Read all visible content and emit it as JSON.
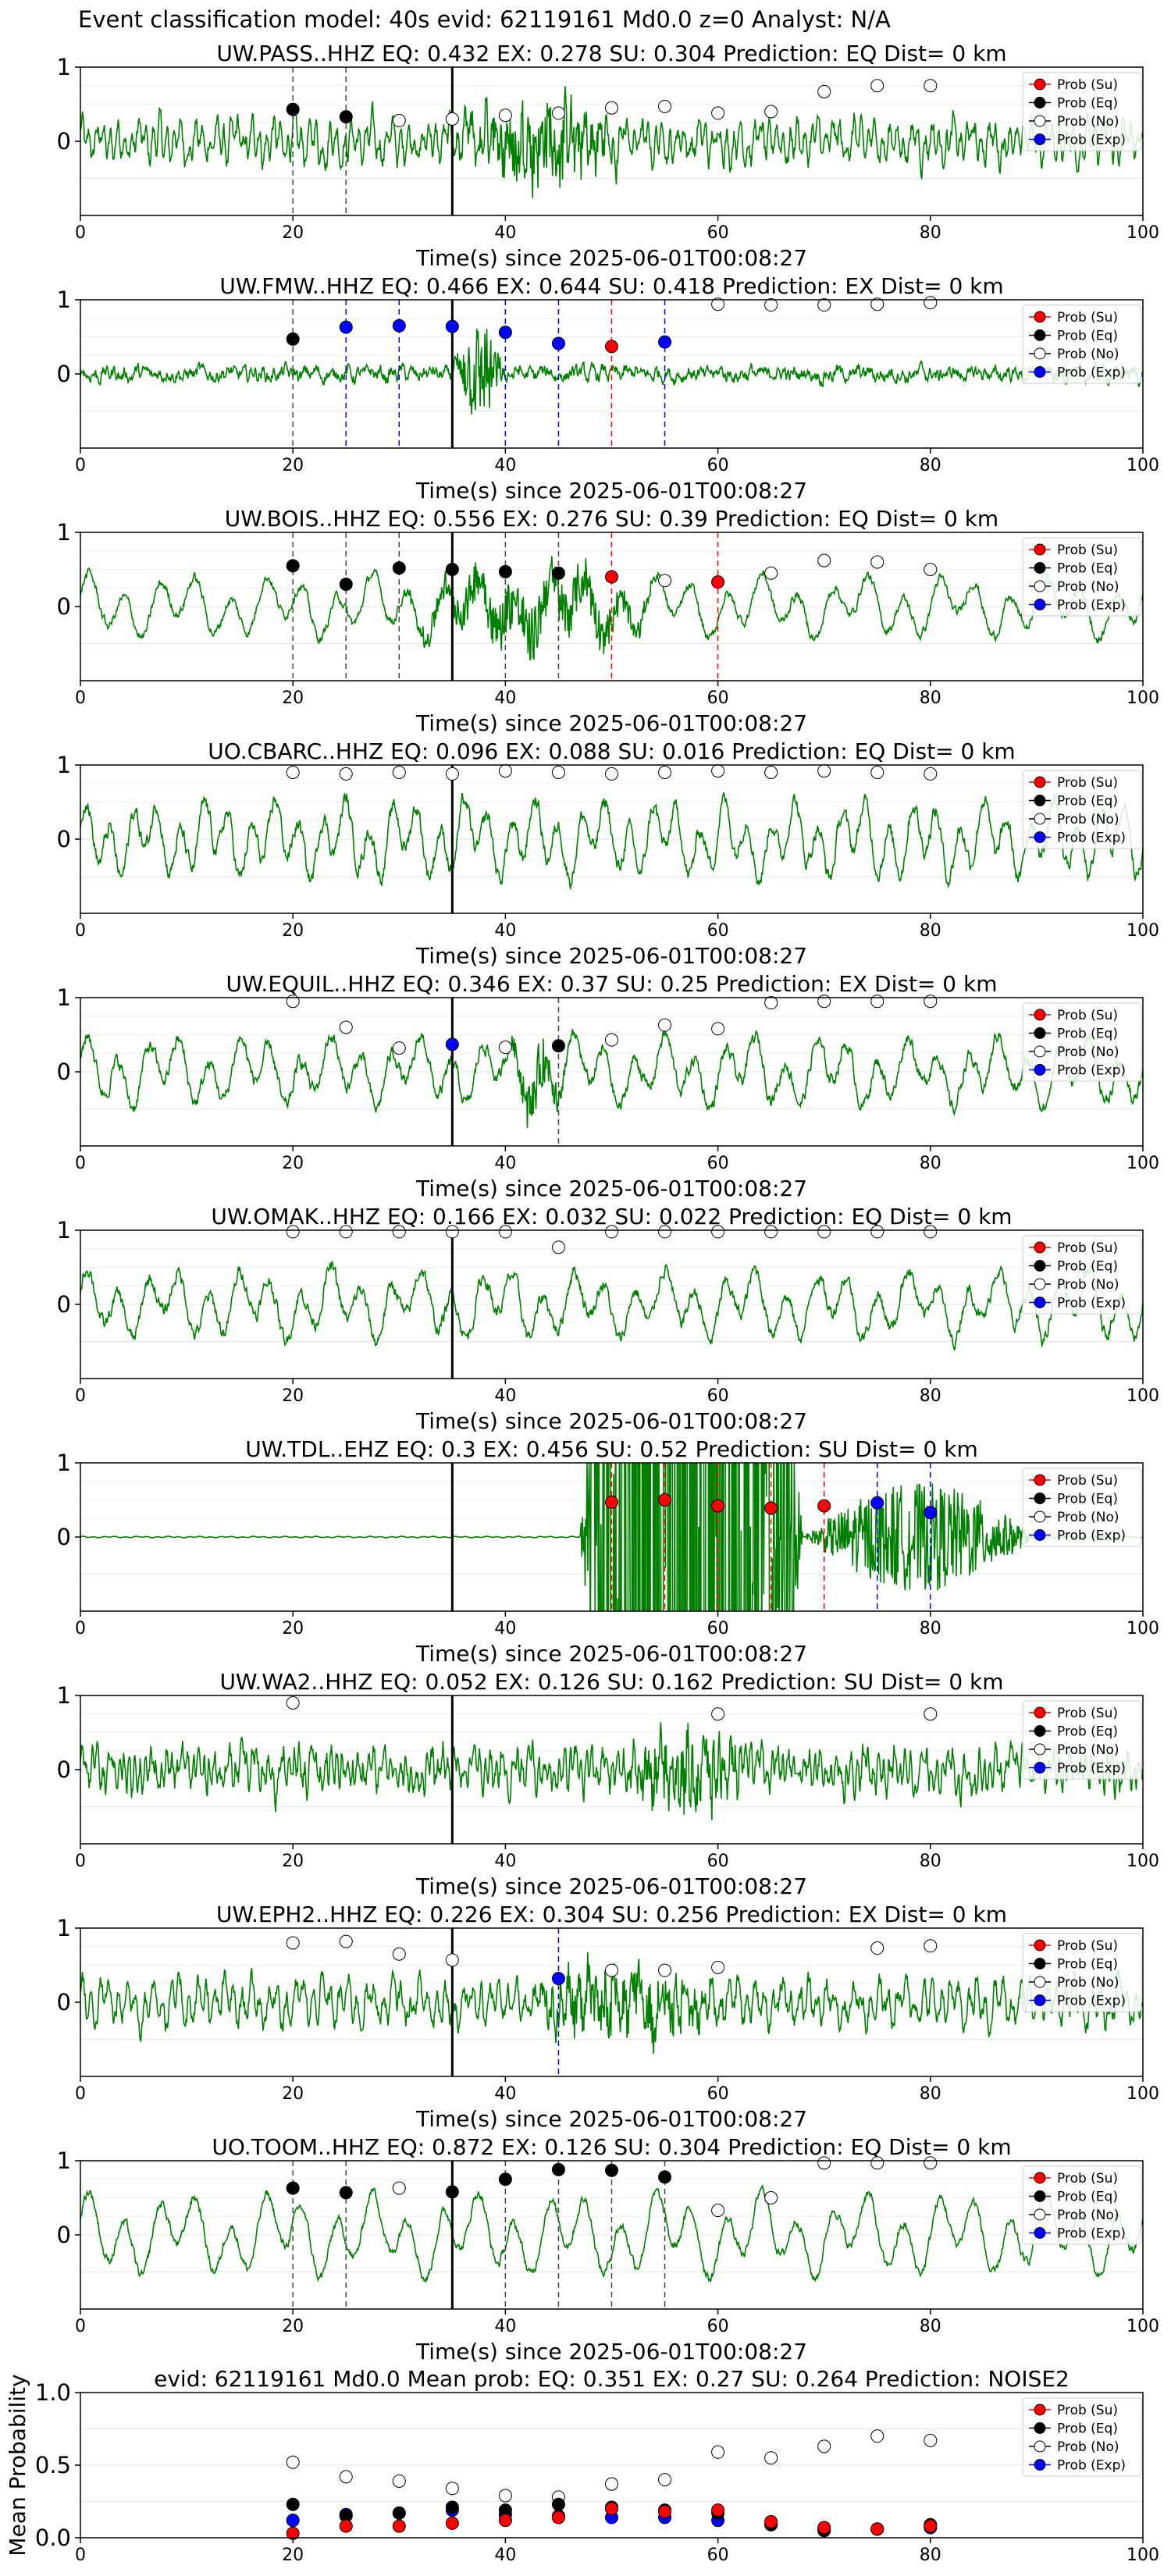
{
  "page_title": "Event classification model: 40s evid: 62119161 Md0.0 z=0 Analyst: N/A",
  "legend_entries": [
    "Prob (Su)",
    "Prob (Eq)",
    "Prob (No)",
    "Prob (Exp)"
  ],
  "colors": {
    "trace": "#008000",
    "su": "#ff0000",
    "eq": "#000000",
    "no": "#ffffff",
    "exp": "#0000ff",
    "pick": "#000000"
  },
  "chart_data": [
    {
      "type": "line",
      "title": "UW.PASS..HHZ   EQ: 0.432  EX: 0.278  SU: 0.304   Prediction: EQ    Dist= 0 km",
      "xlabel": "Time(s) since 2025-06-01T00:08:27",
      "xlim": [
        0,
        100
      ],
      "ylim": [
        -1,
        1
      ],
      "xticks": [
        0,
        20,
        40,
        60,
        80,
        100
      ],
      "yticks": [
        0,
        1
      ],
      "pick_time": 35,
      "waveform": {
        "amp": 0.28,
        "freq": 1.5,
        "noise": 0.5,
        "burst": [
          [
            35,
            52,
            1.9
          ]
        ]
      },
      "series": [
        {
          "name": "Prob (No)",
          "x": [
            30,
            35,
            40,
            45,
            50,
            55,
            60,
            65,
            70,
            75,
            80
          ],
          "y": [
            0.28,
            0.3,
            0.35,
            0.38,
            0.45,
            0.47,
            0.38,
            0.4,
            0.67,
            0.75,
            0.75
          ]
        },
        {
          "name": "Prob (Eq)",
          "x": [
            20,
            25
          ],
          "y": [
            0.43,
            0.33
          ]
        }
      ],
      "vlines": [
        {
          "x": 20,
          "color": "eq"
        },
        {
          "x": 25,
          "color": "eq"
        }
      ],
      "legend": "upper right"
    },
    {
      "type": "line",
      "title": "UW.FMW..HHZ   EQ: 0.466  EX: 0.644  SU: 0.418   Prediction: EX    Dist= 0 km",
      "xlabel": "Time(s) since 2025-06-01T00:08:27",
      "xlim": [
        0,
        100
      ],
      "ylim": [
        -1,
        1
      ],
      "xticks": [
        0,
        20,
        40,
        60,
        80,
        100
      ],
      "yticks": [
        0,
        1
      ],
      "pick_time": 35,
      "waveform": {
        "amp": 0.05,
        "freq": 1.0,
        "noise": 0.3,
        "burst": [
          [
            35,
            40,
            2.6
          ]
        ]
      },
      "series": [
        {
          "name": "Prob (Eq)",
          "x": [
            20
          ],
          "y": [
            0.47
          ]
        },
        {
          "name": "Prob (Exp)",
          "x": [
            25,
            30,
            35,
            40,
            45,
            55
          ],
          "y": [
            0.63,
            0.65,
            0.64,
            0.56,
            0.41,
            0.43
          ]
        },
        {
          "name": "Prob (Su)",
          "x": [
            50
          ],
          "y": [
            0.37
          ]
        },
        {
          "name": "Prob (No)",
          "x": [
            60,
            65,
            70,
            75,
            80
          ],
          "y": [
            0.94,
            0.93,
            0.93,
            0.94,
            0.96
          ]
        }
      ],
      "vlines": [
        {
          "x": 20,
          "color": "eq"
        },
        {
          "x": 25,
          "color": "exp"
        },
        {
          "x": 30,
          "color": "exp"
        },
        {
          "x": 35,
          "color": "exp"
        },
        {
          "x": 40,
          "color": "exp"
        },
        {
          "x": 45,
          "color": "exp"
        },
        {
          "x": 50,
          "color": "su"
        },
        {
          "x": 55,
          "color": "exp"
        }
      ],
      "legend": "upper right"
    },
    {
      "type": "line",
      "title": "UW.BOIS..HHZ   EQ: 0.556  EX: 0.276  SU: 0.39   Prediction: EQ    Dist= 0 km",
      "xlabel": "Time(s) since 2025-06-01T00:08:27",
      "xlim": [
        0,
        100
      ],
      "ylim": [
        -1,
        1
      ],
      "xticks": [
        0,
        20,
        40,
        60,
        80,
        100
      ],
      "yticks": [
        0,
        1
      ],
      "pick_time": 35,
      "waveform": {
        "amp": 0.45,
        "freq": 0.3,
        "noise": 0.2,
        "burst": [
          [
            30,
            55,
            1.5
          ]
        ]
      },
      "series": [
        {
          "name": "Prob (Eq)",
          "x": [
            20,
            25,
            30,
            35,
            40,
            45
          ],
          "y": [
            0.55,
            0.3,
            0.52,
            0.5,
            0.47,
            0.45
          ]
        },
        {
          "name": "Prob (Su)",
          "x": [
            50,
            60
          ],
          "y": [
            0.4,
            0.33
          ]
        },
        {
          "name": "Prob (No)",
          "x": [
            55,
            65,
            70,
            75,
            80
          ],
          "y": [
            0.35,
            0.45,
            0.62,
            0.6,
            0.5
          ]
        }
      ],
      "vlines": [
        {
          "x": 20,
          "color": "eq"
        },
        {
          "x": 25,
          "color": "eq"
        },
        {
          "x": 30,
          "color": "eq"
        },
        {
          "x": 40,
          "color": "eq"
        },
        {
          "x": 45,
          "color": "eq"
        },
        {
          "x": 50,
          "color": "su"
        },
        {
          "x": 60,
          "color": "su"
        }
      ],
      "legend": "upper right"
    },
    {
      "type": "line",
      "title": "UO.CBARC..HHZ   EQ: 0.096  EX: 0.088  SU: 0.016   Prediction: EQ    Dist= 0 km",
      "xlabel": "Time(s) since 2025-06-01T00:08:27",
      "xlim": [
        0,
        100
      ],
      "ylim": [
        -1,
        1
      ],
      "xticks": [
        0,
        20,
        40,
        60,
        80,
        100
      ],
      "yticks": [
        0,
        1
      ],
      "pick_time": 35,
      "waveform": {
        "amp": 0.55,
        "freq": 0.45,
        "noise": 0.35,
        "burst": []
      },
      "series": [
        {
          "name": "Prob (No)",
          "x": [
            20,
            25,
            30,
            35,
            40,
            45,
            50,
            55,
            60,
            65,
            70,
            75,
            80
          ],
          "y": [
            0.9,
            0.88,
            0.9,
            0.88,
            0.92,
            0.9,
            0.88,
            0.9,
            0.92,
            0.9,
            0.92,
            0.9,
            0.88
          ]
        }
      ],
      "vlines": [],
      "legend": "upper right"
    },
    {
      "type": "line",
      "title": "UW.EQUIL..HHZ   EQ: 0.346  EX: 0.37  SU: 0.25   Prediction: EX    Dist= 0 km",
      "xlabel": "Time(s) since 2025-06-01T00:08:27",
      "xlim": [
        0,
        100
      ],
      "ylim": [
        -1,
        1
      ],
      "xticks": [
        0,
        20,
        40,
        60,
        80,
        100
      ],
      "yticks": [
        0,
        1
      ],
      "pick_time": 35,
      "waveform": {
        "amp": 0.5,
        "freq": 0.35,
        "noise": 0.3,
        "burst": [
          [
            40,
            46,
            1.3
          ]
        ]
      },
      "series": [
        {
          "name": "Prob (No)",
          "x": [
            20,
            25,
            30,
            40,
            50,
            55,
            60,
            65,
            70,
            75,
            80
          ],
          "y": [
            0.95,
            0.6,
            0.32,
            0.33,
            0.43,
            0.63,
            0.58,
            0.93,
            0.95,
            0.95,
            0.95
          ]
        },
        {
          "name": "Prob (Exp)",
          "x": [
            35
          ],
          "y": [
            0.37
          ]
        },
        {
          "name": "Prob (Eq)",
          "x": [
            45
          ],
          "y": [
            0.35
          ]
        }
      ],
      "vlines": [
        {
          "x": 45,
          "color": "eq"
        }
      ],
      "legend": "upper right"
    },
    {
      "type": "line",
      "title": "UW.OMAK..HHZ   EQ: 0.166  EX: 0.032  SU: 0.022   Prediction: EQ    Dist= 0 km",
      "xlabel": "Time(s) since 2025-06-01T00:08:27",
      "xlim": [
        0,
        100
      ],
      "ylim": [
        -1,
        1
      ],
      "xticks": [
        0,
        20,
        40,
        60,
        80,
        100
      ],
      "yticks": [
        0,
        1
      ],
      "pick_time": 35,
      "waveform": {
        "amp": 0.5,
        "freq": 0.35,
        "noise": 0.3,
        "burst": []
      },
      "series": [
        {
          "name": "Prob (No)",
          "x": [
            20,
            25,
            30,
            35,
            40,
            45,
            50,
            55,
            60,
            65,
            70,
            75,
            80
          ],
          "y": [
            0.98,
            0.98,
            0.98,
            0.98,
            0.98,
            0.77,
            0.98,
            0.98,
            0.98,
            0.98,
            0.98,
            0.98,
            0.98
          ]
        }
      ],
      "vlines": [],
      "legend": "upper right"
    },
    {
      "type": "line",
      "title": "UW.TDL..EHZ   EQ: 0.3  EX: 0.456  SU: 0.52   Prediction: SU    Dist= 0 km",
      "xlabel": "Time(s) since 2025-06-01T00:08:27",
      "xlim": [
        0,
        100
      ],
      "ylim": [
        -1,
        1
      ],
      "xticks": [
        0,
        20,
        40,
        60,
        80,
        100
      ],
      "yticks": [
        0,
        1
      ],
      "pick_time": 35,
      "waveform": {
        "amp": 0.01,
        "freq": 1.0,
        "noise": 0.0,
        "burst": [
          [
            47,
            68,
            55
          ],
          [
            68,
            90,
            14
          ]
        ]
      },
      "series": [
        {
          "name": "Prob (Su)",
          "x": [
            50,
            55,
            60,
            65,
            70
          ],
          "y": [
            0.47,
            0.5,
            0.42,
            0.39,
            0.42
          ]
        },
        {
          "name": "Prob (Exp)",
          "x": [
            75,
            80
          ],
          "y": [
            0.46,
            0.33
          ]
        }
      ],
      "vlines": [
        {
          "x": 50,
          "color": "su"
        },
        {
          "x": 55,
          "color": "su"
        },
        {
          "x": 60,
          "color": "su"
        },
        {
          "x": 65,
          "color": "su"
        },
        {
          "x": 70,
          "color": "su"
        },
        {
          "x": 75,
          "color": "exp"
        },
        {
          "x": 80,
          "color": "exp"
        }
      ],
      "legend": "upper right"
    },
    {
      "type": "line",
      "title": "UW.WA2..HHZ   EQ: 0.052  EX: 0.126  SU: 0.162   Prediction: SU    Dist= 0 km",
      "xlabel": "Time(s) since 2025-06-01T00:08:27",
      "xlim": [
        0,
        100
      ],
      "ylim": [
        -1,
        1
      ],
      "xticks": [
        0,
        20,
        40,
        60,
        80,
        100
      ],
      "yticks": [
        0,
        1
      ],
      "pick_time": 35,
      "waveform": {
        "amp": 0.25,
        "freq": 2.0,
        "noise": 0.6,
        "burst": [
          [
            50,
            64,
            1.6
          ]
        ]
      },
      "series": [
        {
          "name": "Prob (No)",
          "x": [
            20,
            60,
            80
          ],
          "y": [
            0.9,
            0.75,
            0.75
          ]
        }
      ],
      "vlines": [],
      "legend": "upper right"
    },
    {
      "type": "line",
      "title": "UW.EPH2..HHZ   EQ: 0.226  EX: 0.304  SU: 0.256   Prediction: EX    Dist= 0 km",
      "xlabel": "Time(s) since 2025-06-01T00:08:27",
      "xlim": [
        0,
        100
      ],
      "ylim": [
        -1,
        1
      ],
      "xticks": [
        0,
        20,
        40,
        60,
        80,
        100
      ],
      "yticks": [
        0,
        1
      ],
      "pick_time": 35,
      "waveform": {
        "amp": 0.3,
        "freq": 1.2,
        "noise": 0.5,
        "burst": [
          [
            40,
            62,
            1.5
          ]
        ]
      },
      "series": [
        {
          "name": "Prob (No)",
          "x": [
            20,
            25,
            30,
            35,
            50,
            55,
            60,
            75,
            80
          ],
          "y": [
            0.8,
            0.82,
            0.65,
            0.57,
            0.43,
            0.43,
            0.47,
            0.73,
            0.76
          ]
        },
        {
          "name": "Prob (Exp)",
          "x": [
            45
          ],
          "y": [
            0.32
          ]
        }
      ],
      "vlines": [
        {
          "x": 45,
          "color": "exp"
        }
      ],
      "legend": "upper right"
    },
    {
      "type": "line",
      "title": "UO.TOOM..HHZ   EQ: 0.872  EX: 0.126  SU: 0.304   Prediction: EQ    Dist= 0 km",
      "xlabel": "Time(s) since 2025-06-01T00:08:27",
      "xlim": [
        0,
        100
      ],
      "ylim": [
        -1,
        1
      ],
      "xticks": [
        0,
        20,
        40,
        60,
        80,
        100
      ],
      "yticks": [
        0,
        1
      ],
      "pick_time": 35,
      "waveform": {
        "amp": 0.6,
        "freq": 0.3,
        "noise": 0.2,
        "burst": []
      },
      "series": [
        {
          "name": "Prob (Eq)",
          "x": [
            20,
            25,
            35,
            40,
            45,
            50,
            55
          ],
          "y": [
            0.63,
            0.57,
            0.58,
            0.75,
            0.88,
            0.87,
            0.78
          ]
        },
        {
          "name": "Prob (No)",
          "x": [
            30,
            60,
            65,
            70,
            75,
            80
          ],
          "y": [
            0.63,
            0.33,
            0.5,
            0.97,
            0.97,
            0.97
          ]
        }
      ],
      "vlines": [
        {
          "x": 20,
          "color": "eq"
        },
        {
          "x": 25,
          "color": "eq"
        },
        {
          "x": 40,
          "color": "eq"
        },
        {
          "x": 45,
          "color": "eq"
        },
        {
          "x": 50,
          "color": "eq"
        },
        {
          "x": 55,
          "color": "eq"
        }
      ],
      "legend": "upper right"
    },
    {
      "type": "scatter",
      "title": "evid: 62119161  Md0.0   Mean prob:   EQ: 0.351  EX: 0.27  SU: 0.264   Prediction: NOISE2",
      "xlabel": "",
      "ylabel": "Mean Probability",
      "xlim": [
        0,
        100
      ],
      "ylim": [
        0,
        1
      ],
      "xticks": [
        0,
        20,
        40,
        60,
        80,
        100
      ],
      "yticks": [
        0.0,
        0.5,
        1.0
      ],
      "series": [
        {
          "name": "Prob (No)",
          "x": [
            20,
            25,
            30,
            35,
            40,
            45,
            50,
            55,
            60,
            65,
            70,
            75,
            80
          ],
          "y": [
            0.52,
            0.42,
            0.39,
            0.34,
            0.29,
            0.28,
            0.37,
            0.4,
            0.59,
            0.55,
            0.63,
            0.7,
            0.67
          ]
        },
        {
          "name": "Prob (Exp)",
          "x": [
            20,
            25,
            30,
            35,
            40,
            45,
            50,
            55,
            60,
            65,
            70,
            75,
            80
          ],
          "y": [
            0.12,
            0.16,
            0.17,
            0.19,
            0.16,
            0.15,
            0.14,
            0.14,
            0.12,
            0.09,
            0.05,
            0.06,
            0.07
          ]
        },
        {
          "name": "Prob (Eq)",
          "x": [
            20,
            25,
            30,
            35,
            40,
            45,
            50,
            55,
            60,
            65,
            70,
            75,
            80
          ],
          "y": [
            0.23,
            0.15,
            0.17,
            0.21,
            0.19,
            0.23,
            0.21,
            0.19,
            0.17,
            0.09,
            0.05,
            0.06,
            0.09
          ]
        },
        {
          "name": "Prob (Su)",
          "x": [
            20,
            25,
            30,
            35,
            40,
            45,
            50,
            55,
            60,
            65,
            70,
            75,
            80
          ],
          "y": [
            0.03,
            0.08,
            0.08,
            0.1,
            0.12,
            0.14,
            0.2,
            0.18,
            0.19,
            0.11,
            0.07,
            0.06,
            0.08
          ]
        }
      ],
      "legend": "upper right"
    }
  ]
}
